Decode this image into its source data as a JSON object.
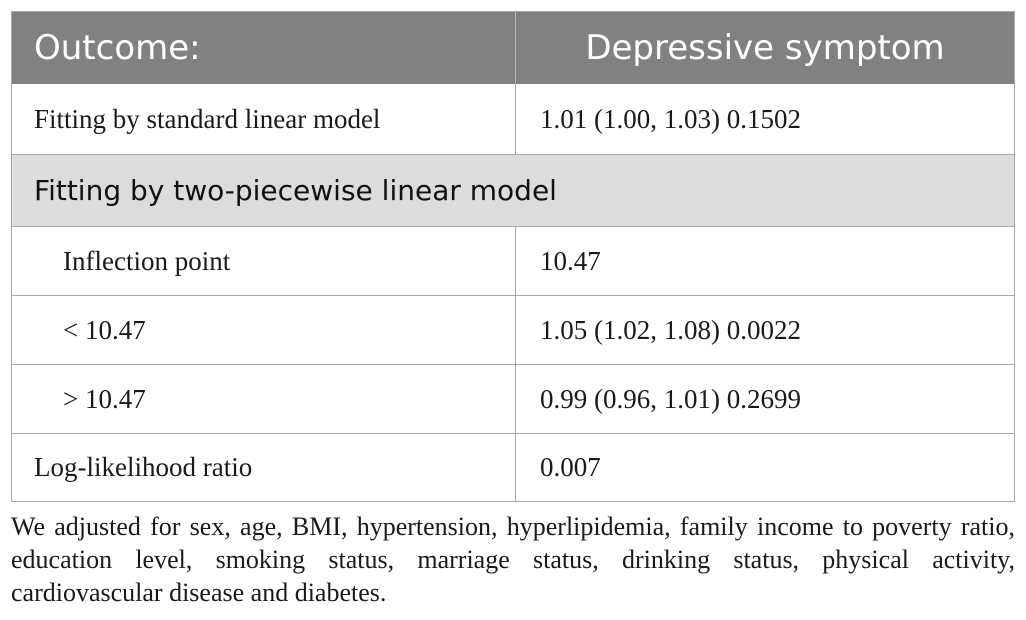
{
  "table": {
    "header": {
      "col1": "Outcome:",
      "col2": "Depressive symptom"
    },
    "rows": [
      {
        "label": "Fitting by standard linear model",
        "value": "1.01 (1.00, 1.03) 0.1502"
      },
      {
        "section": "Fitting by two-piecewise linear model"
      },
      {
        "label": "Inflection point",
        "value": "10.47"
      },
      {
        "label": "< 10.47",
        "value": "1.05 (1.02, 1.08) 0.0022"
      },
      {
        "label": "> 10.47",
        "value": "0.99 (0.96, 1.01) 0.2699"
      },
      {
        "label": "Log-likelihood ratio",
        "value": "0.007"
      }
    ]
  },
  "footnote": "We adjusted for sex, age, BMI, hypertension, hyperlipidemia, family income to poverty ratio, education level, smoking status, marriage status, drinking status, physical activity, cardiovascular disease and diabetes.",
  "colors": {
    "header_bg": "#818181",
    "section_bg": "#dcdcdc",
    "border": "#a9a9a9"
  }
}
